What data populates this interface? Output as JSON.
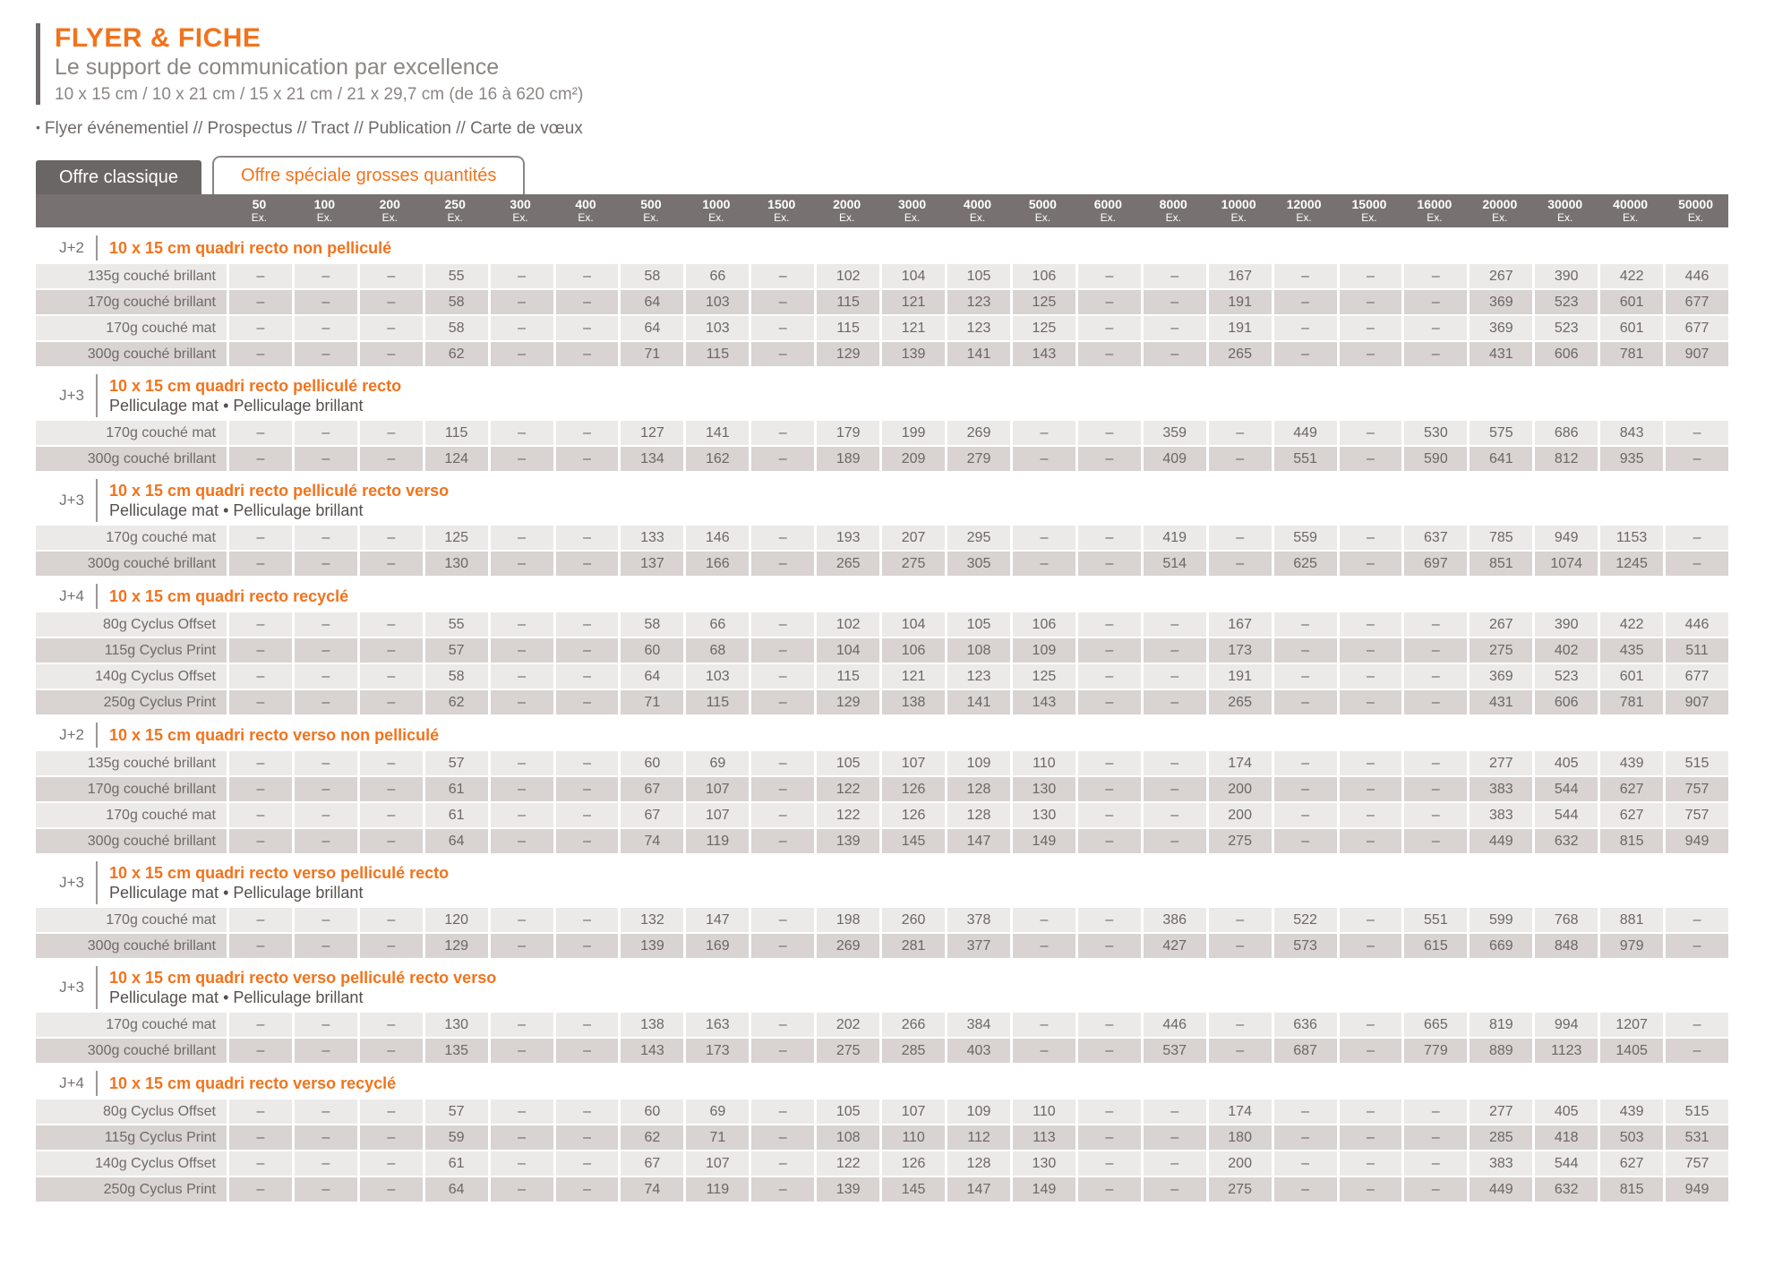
{
  "header": {
    "title": "FLYER & FICHE",
    "subtitle": "Le support de communication par excellence",
    "formats": "10 x 15 cm / 10 x 21 cm / 15 x 21 cm / 21 x 29,7 cm (de 16 à 620 cm²)",
    "uses_bullet": "•",
    "uses": "Flyer événementiel // Prospectus // Tract // Publication // Carte de vœux"
  },
  "tabs": [
    {
      "label": "Offre classique",
      "active": true
    },
    {
      "label": "Offre spéciale grosses quantités",
      "active": false
    }
  ],
  "colors": {
    "accent_orange": "#F2731C",
    "band_gray": "#777271",
    "tab_active_gray": "#6B6666",
    "row_light": "#EBEAE8",
    "row_dark": "#D9D3D1",
    "text_gray": "#6E6A68"
  },
  "table": {
    "quantity_unit": "Ex.",
    "quantities": [
      "50",
      "100",
      "200",
      "250",
      "300",
      "400",
      "500",
      "1000",
      "1500",
      "2000",
      "3000",
      "4000",
      "5000",
      "6000",
      "8000",
      "10000",
      "12000",
      "15000",
      "16000",
      "20000",
      "30000",
      "40000",
      "50000"
    ],
    "sections": [
      {
        "delay": "J+2",
        "title": "10 x 15 cm quadri recto non pelliculé",
        "subtitle": "",
        "rows": [
          {
            "label": "135g couché brillant",
            "values": [
              "–",
              "–",
              "–",
              "55",
              "–",
              "–",
              "58",
              "66",
              "–",
              "102",
              "104",
              "105",
              "106",
              "–",
              "–",
              "167",
              "–",
              "–",
              "–",
              "267",
              "390",
              "422",
              "446"
            ]
          },
          {
            "label": "170g couché brillant",
            "values": [
              "–",
              "–",
              "–",
              "58",
              "–",
              "–",
              "64",
              "103",
              "–",
              "115",
              "121",
              "123",
              "125",
              "–",
              "–",
              "191",
              "–",
              "–",
              "–",
              "369",
              "523",
              "601",
              "677"
            ]
          },
          {
            "label": "170g couché mat",
            "values": [
              "–",
              "–",
              "–",
              "58",
              "–",
              "–",
              "64",
              "103",
              "–",
              "115",
              "121",
              "123",
              "125",
              "–",
              "–",
              "191",
              "–",
              "–",
              "–",
              "369",
              "523",
              "601",
              "677"
            ]
          },
          {
            "label": "300g couché brillant",
            "values": [
              "–",
              "–",
              "–",
              "62",
              "–",
              "–",
              "71",
              "115",
              "–",
              "129",
              "139",
              "141",
              "143",
              "–",
              "–",
              "265",
              "–",
              "–",
              "–",
              "431",
              "606",
              "781",
              "907"
            ]
          }
        ]
      },
      {
        "delay": "J+3",
        "title": "10 x 15 cm quadri recto pelliculé recto",
        "subtitle": "Pelliculage mat  •  Pelliculage brillant",
        "rows": [
          {
            "label": "170g couché mat",
            "values": [
              "–",
              "–",
              "–",
              "115",
              "–",
              "–",
              "127",
              "141",
              "–",
              "179",
              "199",
              "269",
              "–",
              "–",
              "359",
              "–",
              "449",
              "–",
              "530",
              "575",
              "686",
              "843",
              "–"
            ]
          },
          {
            "label": "300g couché brillant",
            "values": [
              "–",
              "–",
              "–",
              "124",
              "–",
              "–",
              "134",
              "162",
              "–",
              "189",
              "209",
              "279",
              "–",
              "–",
              "409",
              "–",
              "551",
              "–",
              "590",
              "641",
              "812",
              "935",
              "–"
            ]
          }
        ]
      },
      {
        "delay": "J+3",
        "title": "10 x 15 cm quadri recto pelliculé recto verso",
        "subtitle": "Pelliculage mat  •  Pelliculage brillant",
        "rows": [
          {
            "label": "170g couché mat",
            "values": [
              "–",
              "–",
              "–",
              "125",
              "–",
              "–",
              "133",
              "146",
              "–",
              "193",
              "207",
              "295",
              "–",
              "–",
              "419",
              "–",
              "559",
              "–",
              "637",
              "785",
              "949",
              "1153",
              "–"
            ]
          },
          {
            "label": "300g couché brillant",
            "values": [
              "–",
              "–",
              "–",
              "130",
              "–",
              "–",
              "137",
              "166",
              "–",
              "265",
              "275",
              "305",
              "–",
              "–",
              "514",
              "–",
              "625",
              "–",
              "697",
              "851",
              "1074",
              "1245",
              "–"
            ]
          }
        ]
      },
      {
        "delay": "J+4",
        "title": "10 x 15 cm quadri recto recyclé",
        "subtitle": "",
        "rows": [
          {
            "label": "80g Cyclus Offset",
            "values": [
              "–",
              "–",
              "–",
              "55",
              "–",
              "–",
              "58",
              "66",
              "–",
              "102",
              "104",
              "105",
              "106",
              "–",
              "–",
              "167",
              "–",
              "–",
              "–",
              "267",
              "390",
              "422",
              "446"
            ]
          },
          {
            "label": "115g Cyclus Print",
            "values": [
              "–",
              "–",
              "–",
              "57",
              "–",
              "–",
              "60",
              "68",
              "–",
              "104",
              "106",
              "108",
              "109",
              "–",
              "–",
              "173",
              "–",
              "–",
              "–",
              "275",
              "402",
              "435",
              "511"
            ]
          },
          {
            "label": "140g Cyclus Offset",
            "values": [
              "–",
              "–",
              "–",
              "58",
              "–",
              "–",
              "64",
              "103",
              "–",
              "115",
              "121",
              "123",
              "125",
              "–",
              "–",
              "191",
              "–",
              "–",
              "–",
              "369",
              "523",
              "601",
              "677"
            ]
          },
          {
            "label": "250g Cyclus Print",
            "values": [
              "–",
              "–",
              "–",
              "62",
              "–",
              "–",
              "71",
              "115",
              "–",
              "129",
              "138",
              "141",
              "143",
              "–",
              "–",
              "265",
              "–",
              "–",
              "–",
              "431",
              "606",
              "781",
              "907"
            ]
          }
        ]
      },
      {
        "delay": "J+2",
        "title": "10 x 15 cm quadri recto verso non pelliculé",
        "subtitle": "",
        "rows": [
          {
            "label": "135g couché brillant",
            "values": [
              "–",
              "–",
              "–",
              "57",
              "–",
              "–",
              "60",
              "69",
              "–",
              "105",
              "107",
              "109",
              "110",
              "–",
              "–",
              "174",
              "–",
              "–",
              "–",
              "277",
              "405",
              "439",
              "515"
            ]
          },
          {
            "label": "170g couché brillant",
            "values": [
              "–",
              "–",
              "–",
              "61",
              "–",
              "–",
              "67",
              "107",
              "–",
              "122",
              "126",
              "128",
              "130",
              "–",
              "–",
              "200",
              "–",
              "–",
              "–",
              "383",
              "544",
              "627",
              "757"
            ]
          },
          {
            "label": "170g couché mat",
            "values": [
              "–",
              "–",
              "–",
              "61",
              "–",
              "–",
              "67",
              "107",
              "–",
              "122",
              "126",
              "128",
              "130",
              "–",
              "–",
              "200",
              "–",
              "–",
              "–",
              "383",
              "544",
              "627",
              "757"
            ]
          },
          {
            "label": "300g couché brillant",
            "values": [
              "–",
              "–",
              "–",
              "64",
              "–",
              "–",
              "74",
              "119",
              "–",
              "139",
              "145",
              "147",
              "149",
              "–",
              "–",
              "275",
              "–",
              "–",
              "–",
              "449",
              "632",
              "815",
              "949"
            ]
          }
        ]
      },
      {
        "delay": "J+3",
        "title": "10 x 15 cm quadri recto verso pelliculé recto",
        "subtitle": "Pelliculage mat  •  Pelliculage brillant",
        "rows": [
          {
            "label": "170g couché mat",
            "values": [
              "–",
              "–",
              "–",
              "120",
              "–",
              "–",
              "132",
              "147",
              "–",
              "198",
              "260",
              "378",
              "–",
              "–",
              "386",
              "–",
              "522",
              "–",
              "551",
              "599",
              "768",
              "881",
              "–"
            ]
          },
          {
            "label": "300g couché brillant",
            "values": [
              "–",
              "–",
              "–",
              "129",
              "–",
              "–",
              "139",
              "169",
              "–",
              "269",
              "281",
              "377",
              "–",
              "–",
              "427",
              "–",
              "573",
              "–",
              "615",
              "669",
              "848",
              "979",
              "–"
            ]
          }
        ]
      },
      {
        "delay": "J+3",
        "title": "10 x 15 cm quadri recto verso pelliculé recto verso",
        "subtitle": "Pelliculage mat  •  Pelliculage brillant",
        "rows": [
          {
            "label": "170g couché mat",
            "values": [
              "–",
              "–",
              "–",
              "130",
              "–",
              "–",
              "138",
              "163",
              "–",
              "202",
              "266",
              "384",
              "–",
              "–",
              "446",
              "–",
              "636",
              "–",
              "665",
              "819",
              "994",
              "1207",
              "–"
            ]
          },
          {
            "label": "300g couché brillant",
            "values": [
              "–",
              "–",
              "–",
              "135",
              "–",
              "–",
              "143",
              "173",
              "–",
              "275",
              "285",
              "403",
              "–",
              "–",
              "537",
              "–",
              "687",
              "–",
              "779",
              "889",
              "1123",
              "1405",
              "–"
            ]
          }
        ]
      },
      {
        "delay": "J+4",
        "title": "10 x 15 cm quadri recto verso recyclé",
        "subtitle": "",
        "rows": [
          {
            "label": "80g Cyclus Offset",
            "values": [
              "–",
              "–",
              "–",
              "57",
              "–",
              "–",
              "60",
              "69",
              "–",
              "105",
              "107",
              "109",
              "110",
              "–",
              "–",
              "174",
              "–",
              "–",
              "–",
              "277",
              "405",
              "439",
              "515"
            ]
          },
          {
            "label": "115g Cyclus Print",
            "values": [
              "–",
              "–",
              "–",
              "59",
              "–",
              "–",
              "62",
              "71",
              "–",
              "108",
              "110",
              "112",
              "113",
              "–",
              "–",
              "180",
              "–",
              "–",
              "–",
              "285",
              "418",
              "503",
              "531"
            ]
          },
          {
            "label": "140g Cyclus Offset",
            "values": [
              "–",
              "–",
              "–",
              "61",
              "–",
              "–",
              "67",
              "107",
              "–",
              "122",
              "126",
              "128",
              "130",
              "–",
              "–",
              "200",
              "–",
              "–",
              "–",
              "383",
              "544",
              "627",
              "757"
            ]
          },
          {
            "label": "250g Cyclus Print",
            "values": [
              "–",
              "–",
              "–",
              "64",
              "–",
              "–",
              "74",
              "119",
              "–",
              "139",
              "145",
              "147",
              "149",
              "–",
              "–",
              "275",
              "–",
              "–",
              "–",
              "449",
              "632",
              "815",
              "949"
            ]
          }
        ]
      }
    ]
  }
}
